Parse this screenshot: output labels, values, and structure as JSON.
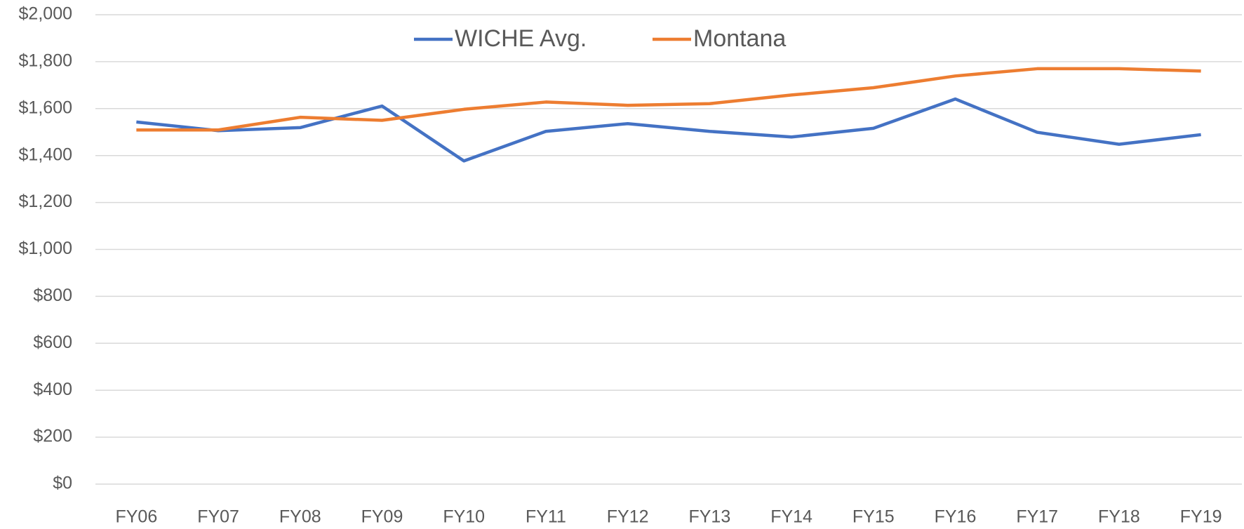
{
  "chart_data": {
    "type": "line",
    "categories": [
      "FY06",
      "FY07",
      "FY08",
      "FY09",
      "FY10",
      "FY11",
      "FY12",
      "FY13",
      "FY14",
      "FY15",
      "FY16",
      "FY17",
      "FY18",
      "FY19"
    ],
    "series": [
      {
        "name": "WICHE Avg.",
        "color": "#4472c4",
        "values": [
          1543,
          1506,
          1519,
          1611,
          1377,
          1503,
          1536,
          1503,
          1479,
          1516,
          1641,
          1499,
          1448,
          1489
        ]
      },
      {
        "name": "Montana",
        "color": "#ed7d31",
        "values": [
          1509,
          1509,
          1563,
          1550,
          1597,
          1628,
          1614,
          1621,
          1658,
          1689,
          1739,
          1770,
          1770,
          1760
        ]
      }
    ],
    "ylim": [
      0,
      2000
    ],
    "yticks": [
      {
        "value": 0,
        "label": "$0"
      },
      {
        "value": 200,
        "label": "$200"
      },
      {
        "value": 400,
        "label": "$400"
      },
      {
        "value": 600,
        "label": "$600"
      },
      {
        "value": 800,
        "label": "$800"
      },
      {
        "value": 1000,
        "label": "$1,000"
      },
      {
        "value": 1200,
        "label": "$1,200"
      },
      {
        "value": 1400,
        "label": "$1,400"
      },
      {
        "value": 1600,
        "label": "$1,600"
      },
      {
        "value": 1800,
        "label": "$1,800"
      },
      {
        "value": 2000,
        "label": "$2,000"
      }
    ],
    "grid": true,
    "legend": "top"
  }
}
